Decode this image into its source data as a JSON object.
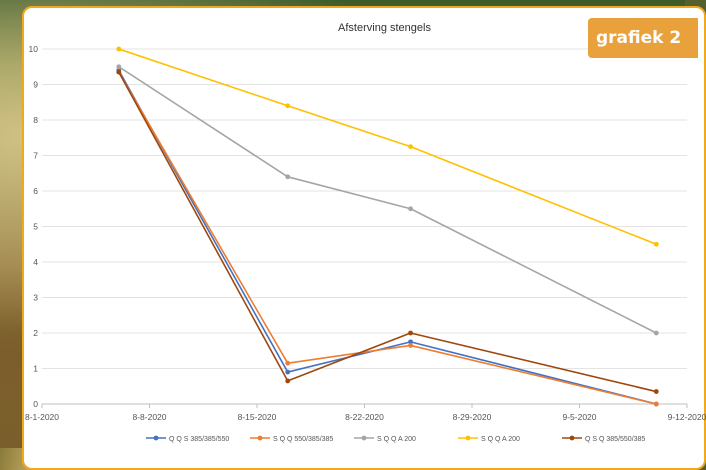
{
  "badge": {
    "label": "grafiek 2"
  },
  "chart_data": {
    "type": "line",
    "title": "Afsterving stengels",
    "xlabel": "",
    "ylabel": "",
    "x_axis_type": "date",
    "xlim": [
      "2020-08-01",
      "2020-09-12"
    ],
    "x_tick_values": [
      "2020-08-01",
      "2020-08-08",
      "2020-08-15",
      "2020-08-22",
      "2020-08-29",
      "2020-09-05",
      "2020-09-12"
    ],
    "x_tick_labels": [
      "8-1-2020",
      "8-8-2020",
      "8-15-2020",
      "8-22-2020",
      "8-29-2020",
      "9-5-2020",
      "9-12-2020"
    ],
    "ylim": [
      0,
      10
    ],
    "y_tick_labels": [
      "0",
      "1",
      "2",
      "3",
      "4",
      "5",
      "6",
      "7",
      "8",
      "9",
      "10"
    ],
    "grid": "horizontal",
    "legend_position": "bottom",
    "x": [
      "2020-08-06",
      "2020-08-17",
      "2020-08-25",
      "2020-09-10"
    ],
    "series": [
      {
        "name": "Q Q S 385/385/550",
        "color": "#4472c4",
        "values": [
          9.4,
          0.9,
          1.75,
          0.0
        ]
      },
      {
        "name": "S Q Q 550/385/385",
        "color": "#ed7d31",
        "values": [
          9.35,
          1.15,
          1.65,
          0.0
        ]
      },
      {
        "name": "S Q Q A 200",
        "color": "#a5a5a5",
        "values": [
          9.5,
          6.4,
          5.5,
          2.0
        ]
      },
      {
        "name": "S Q Q A 200",
        "color": "#ffc000",
        "values": [
          10.0,
          8.4,
          7.25,
          4.5
        ]
      },
      {
        "name": "Q S Q 385/550/385",
        "color": "#9e480e",
        "values": [
          9.35,
          0.65,
          2.0,
          0.35
        ]
      }
    ]
  }
}
